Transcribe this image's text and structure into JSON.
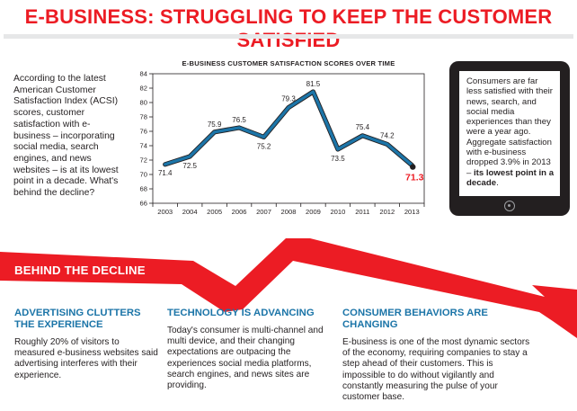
{
  "title": "E-BUSINESS: STRUGGLING TO KEEP THE CUSTOMER SATISFIED",
  "intro": "According to the latest American Customer Satisfaction Index (ACSI) scores, customer satisfaction with e-business – incorporating social media, search engines, and news websites – is at its lowest point in a decade. What's behind the decline?",
  "chart_data": {
    "type": "line",
    "title": "E-BUSINESS CUSTOMER SATISFACTION SCORES OVER TIME",
    "xlabel": "",
    "ylabel": "",
    "categories": [
      "2003",
      "2004",
      "2005",
      "2006",
      "2007",
      "2008",
      "2009",
      "2010",
      "2011",
      "2012",
      "2013"
    ],
    "series": [
      {
        "values": [
          71.4,
          72.5,
          75.9,
          76.5,
          75.2,
          79.3,
          81.5,
          73.5,
          75.4,
          74.2,
          71.3
        ]
      }
    ],
    "data_labels": [
      "71.4",
      "72.5",
      "75.9",
      "76.5",
      "75.2",
      "79.3",
      "81.5",
      "73.5",
      "75.4",
      "74.2",
      "71.3"
    ],
    "ylim": [
      66,
      84
    ],
    "yticks": [
      66,
      68,
      70,
      72,
      74,
      76,
      78,
      80,
      82,
      84
    ],
    "grid": false,
    "line_color": "#1c75a8",
    "highlight_color": "#ec1c24"
  },
  "tablet": {
    "text_normal": "Consumers are far less satisfied with their news, search, and social media experiences than they were a year ago. Aggregate satisfaction with e-business dropped 3.9% in 2013 – ",
    "text_bold": "its lowest point in a decade",
    "text_end": "."
  },
  "banner": {
    "label": "BEHIND THE DECLINE",
    "color": "#ec1c24"
  },
  "columns": [
    {
      "heading": "ADVERTISING CLUTTERS THE EXPERIENCE",
      "body": "Roughly 20% of visitors to measured e-business websites said advertising interferes with their experience."
    },
    {
      "heading": "TECHNOLOGY IS ADVANCING",
      "body": "Today's consumer is multi-channel and multi device, and their changing expectations are outpacing the experiences social media platforms, search engines, and news sites are providing."
    },
    {
      "heading": "CONSUMER BEHAVIORS ARE CHANGING",
      "body": "E-business is one of the most dynamic sectors of the economy, requiring companies to stay a step ahead of their customers. This is impossible to do without vigilantly and constantly measuring the pulse of your customer base."
    }
  ],
  "colors": {
    "title": "#ec1c24",
    "heading": "#1c75a8",
    "text": "#231f20"
  }
}
